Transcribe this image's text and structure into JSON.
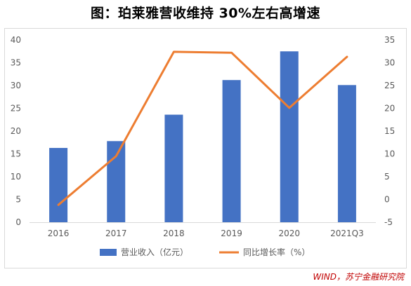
{
  "title": "图：珀莱雅营收维持 30%左右高增速",
  "source": "WIND，苏宁金融研究院",
  "colors": {
    "bar": "#4472c4",
    "line": "#ed7d31"
  },
  "chart_data": {
    "type": "bar+line",
    "categories": [
      "2016",
      "2017",
      "2018",
      "2019",
      "2020",
      "2021Q3"
    ],
    "series": [
      {
        "name": "营业收入（亿元）",
        "type": "bar",
        "axis": "left",
        "values": [
          16.3,
          17.8,
          23.6,
          31.2,
          37.5,
          30.1
        ]
      },
      {
        "name": "同比增长率（%）",
        "type": "line",
        "axis": "right",
        "values": [
          -1.2,
          9.5,
          32.4,
          32.2,
          20.1,
          31.3
        ]
      }
    ],
    "ylim_left": [
      0,
      40
    ],
    "yticks_left": [
      "0",
      "5",
      "10",
      "15",
      "20",
      "25",
      "30",
      "35",
      "40"
    ],
    "ylim_right": [
      -5,
      35
    ],
    "yticks_right": [
      "-5",
      "0",
      "5",
      "10",
      "15",
      "20",
      "25",
      "30",
      "35"
    ],
    "grid": false,
    "legend": "bottom"
  }
}
